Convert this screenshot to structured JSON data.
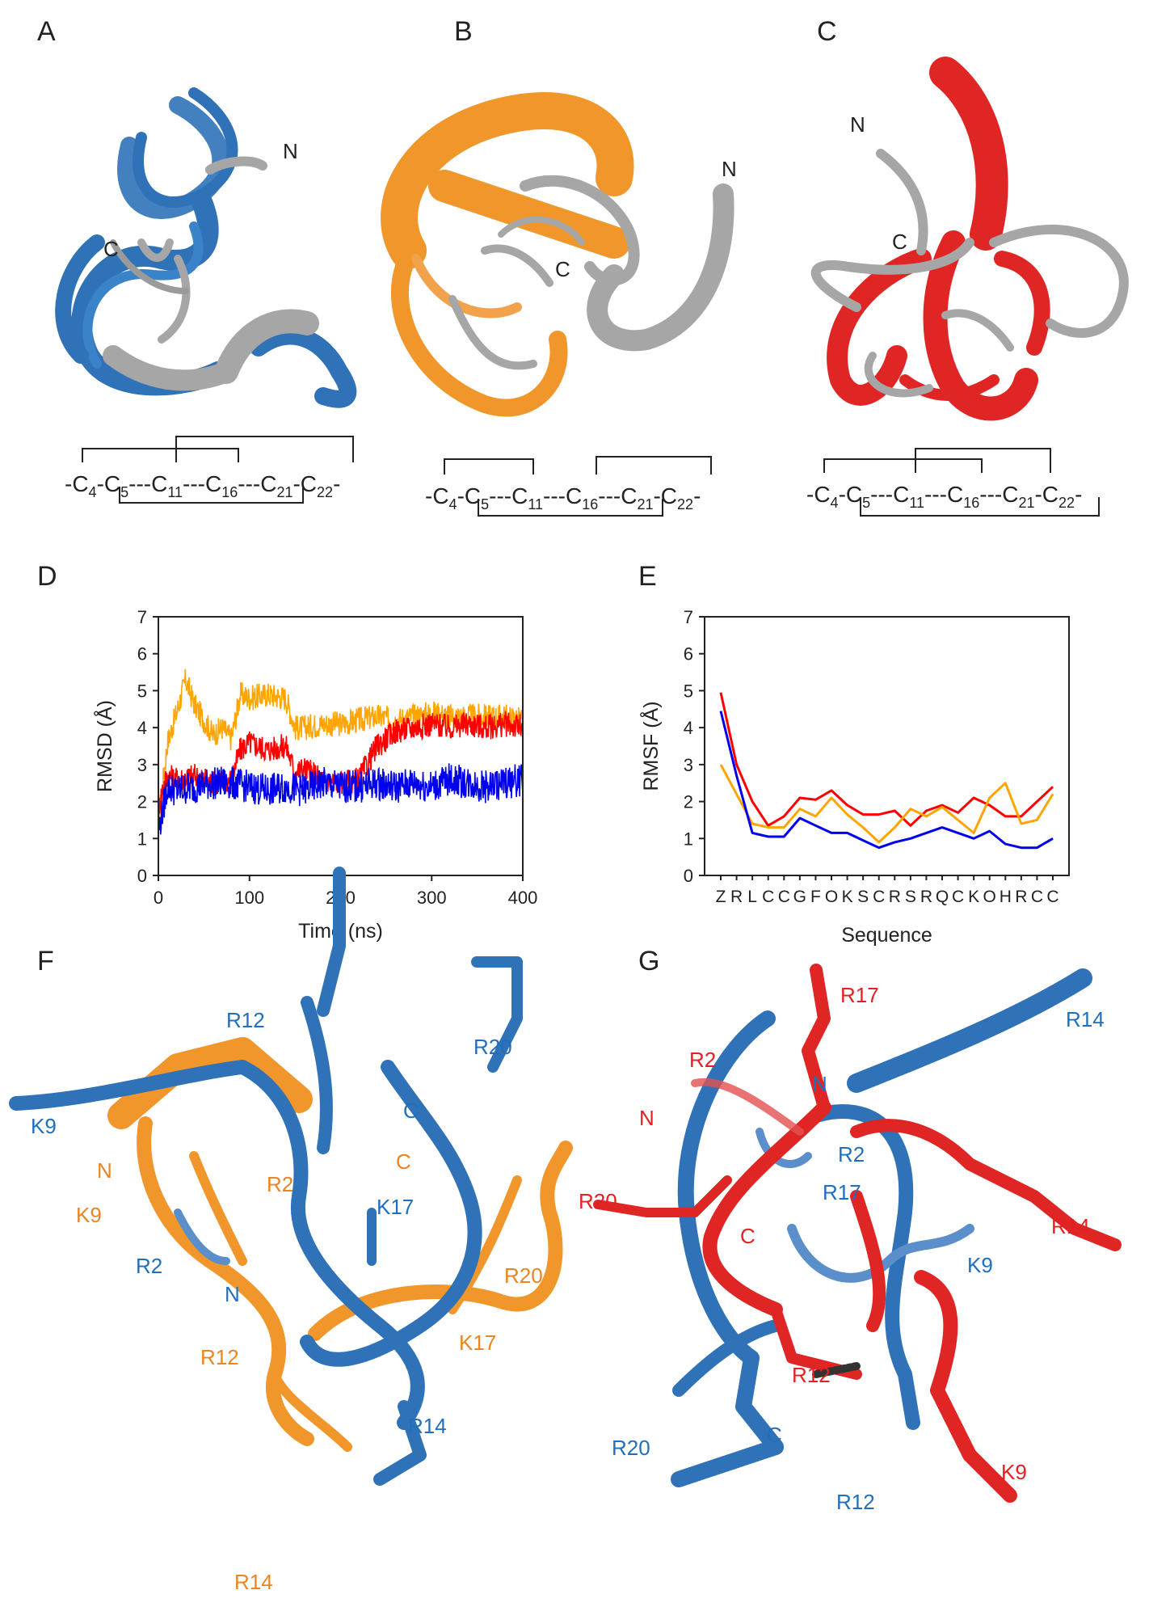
{
  "panels": {
    "A": {
      "letter": "A",
      "n_label": "N",
      "c_label": "C",
      "bond_scheme": [
        "-C",
        "4",
        "-C",
        "5",
        "---C",
        "11",
        "---C",
        "16",
        "---C",
        "21",
        "-C",
        "22",
        "-"
      ]
    },
    "B": {
      "letter": "B",
      "n_label": "N",
      "c_label": "C",
      "bond_scheme": [
        "-C",
        "4",
        "-C",
        "5",
        "---C",
        "11",
        "---C",
        "16",
        "---C",
        "21",
        "-C",
        "22",
        "-"
      ]
    },
    "C": {
      "letter": "C",
      "n_label": "N",
      "c_label": "C",
      "bond_scheme": [
        "-C",
        "4",
        "-C",
        "5",
        "---C",
        "11",
        "---C",
        "16",
        "---C",
        "21",
        "-C",
        "22",
        "-"
      ]
    },
    "D": {
      "letter": "D"
    },
    "E": {
      "letter": "E"
    },
    "F": {
      "letter": "F",
      "labels_blue": [
        "R12",
        "R20",
        "C",
        "K9",
        "R2",
        "K17",
        "R2",
        "N",
        "R14"
      ],
      "labels_orange": [
        "N",
        "K9",
        "C",
        "R20",
        "R12",
        "K17",
        "R14"
      ]
    },
    "G": {
      "letter": "G",
      "labels_red": [
        "R17",
        "R2",
        "N",
        "R20",
        "C",
        "R14",
        "R12",
        "K9"
      ],
      "labels_blue": [
        "R14",
        "N",
        "R2",
        "R17",
        "K9",
        "R20",
        "C",
        "R12"
      ]
    }
  },
  "colors": {
    "blue": "#0000ee",
    "red": "#ff0000",
    "orange": "#ffa500",
    "mol_blue": "#2f72b8",
    "mol_orange": "#f0962a",
    "mol_red": "#e02525",
    "mol_gray": "#a6a6a6",
    "label_blue": "#1f6fbf",
    "label_orange": "#ec8420",
    "label_red": "#e42020"
  },
  "chart_data": [
    {
      "panel": "D",
      "type": "line",
      "xlabel": "Time (ns)",
      "ylabel": "RMSD (Å)",
      "xlim": [
        0,
        400
      ],
      "ylim": [
        0,
        7
      ],
      "xticks": [
        0,
        100,
        200,
        300,
        400
      ],
      "yticks": [
        0,
        1,
        2,
        3,
        4,
        5,
        6,
        7
      ],
      "grid": false,
      "series": [
        {
          "color": "#ffa500",
          "x": [
            0,
            5,
            10,
            20,
            30,
            40,
            50,
            60,
            70,
            80,
            90,
            100,
            120,
            140,
            150,
            160,
            180,
            200,
            220,
            240,
            260,
            280,
            300,
            320,
            340,
            360,
            380,
            400
          ],
          "y": [
            1.5,
            2.5,
            3.6,
            4.4,
            5.3,
            4.6,
            4.2,
            3.8,
            4.0,
            3.7,
            4.9,
            4.8,
            4.9,
            4.8,
            4.0,
            4.0,
            4.1,
            4.1,
            4.2,
            4.3,
            4.2,
            4.3,
            4.4,
            4.3,
            4.3,
            4.3,
            4.3,
            4.2
          ],
          "noise": 0.35
        },
        {
          "color": "#ff0000",
          "x": [
            0,
            5,
            10,
            20,
            40,
            60,
            80,
            90,
            100,
            120,
            140,
            150,
            160,
            180,
            200,
            220,
            240,
            260,
            280,
            300,
            320,
            340,
            360,
            380,
            400
          ],
          "y": [
            1.8,
            2.4,
            2.7,
            2.6,
            2.7,
            2.5,
            2.6,
            3.4,
            3.6,
            3.4,
            3.5,
            2.8,
            2.9,
            2.6,
            2.5,
            2.6,
            3.5,
            3.9,
            4.0,
            4.1,
            4.0,
            4.1,
            4.0,
            4.1,
            4.0
          ],
          "noise": 0.35
        },
        {
          "color": "#0000ee",
          "x": [
            0,
            10,
            20,
            40,
            60,
            80,
            100,
            120,
            140,
            160,
            180,
            200,
            220,
            240,
            260,
            280,
            300,
            320,
            340,
            360,
            380,
            400
          ],
          "y": [
            1.2,
            2.4,
            2.3,
            2.4,
            2.5,
            2.5,
            2.4,
            2.3,
            2.4,
            2.3,
            2.5,
            2.4,
            2.4,
            2.5,
            2.4,
            2.5,
            2.4,
            2.6,
            2.5,
            2.4,
            2.5,
            2.6
          ],
          "noise": 0.45
        }
      ]
    },
    {
      "panel": "E",
      "type": "line",
      "xlabel": "Sequence",
      "ylabel": "RMSF (Å)",
      "ylim": [
        0,
        7
      ],
      "yticks": [
        0,
        1,
        2,
        3,
        4,
        5,
        6,
        7
      ],
      "grid": false,
      "categories": [
        "Z",
        "R",
        "L",
        "C",
        "C",
        "G",
        "F",
        "O",
        "K",
        "S",
        "C",
        "R",
        "S",
        "R",
        "Q",
        "C",
        "K",
        "O",
        "H",
        "R",
        "C",
        "C"
      ],
      "series": [
        {
          "color": "#ff0000",
          "values": [
            4.95,
            3.0,
            2.0,
            1.35,
            1.6,
            2.1,
            2.05,
            2.3,
            1.9,
            1.65,
            1.65,
            1.75,
            1.35,
            1.75,
            1.9,
            1.7,
            2.1,
            1.9,
            1.6,
            1.6,
            2.0,
            2.4
          ]
        },
        {
          "color": "#ffa500",
          "values": [
            3.0,
            2.2,
            1.4,
            1.3,
            1.3,
            1.8,
            1.6,
            2.1,
            1.65,
            1.3,
            0.9,
            1.3,
            1.8,
            1.6,
            1.85,
            1.5,
            1.15,
            2.1,
            2.5,
            1.4,
            1.5,
            2.2
          ]
        },
        {
          "color": "#0000ee",
          "values": [
            4.45,
            2.7,
            1.15,
            1.05,
            1.05,
            1.55,
            1.35,
            1.15,
            1.15,
            0.95,
            0.75,
            0.9,
            1.0,
            1.15,
            1.3,
            1.15,
            1.0,
            1.2,
            0.85,
            0.75,
            0.75,
            1.0
          ]
        }
      ]
    }
  ]
}
